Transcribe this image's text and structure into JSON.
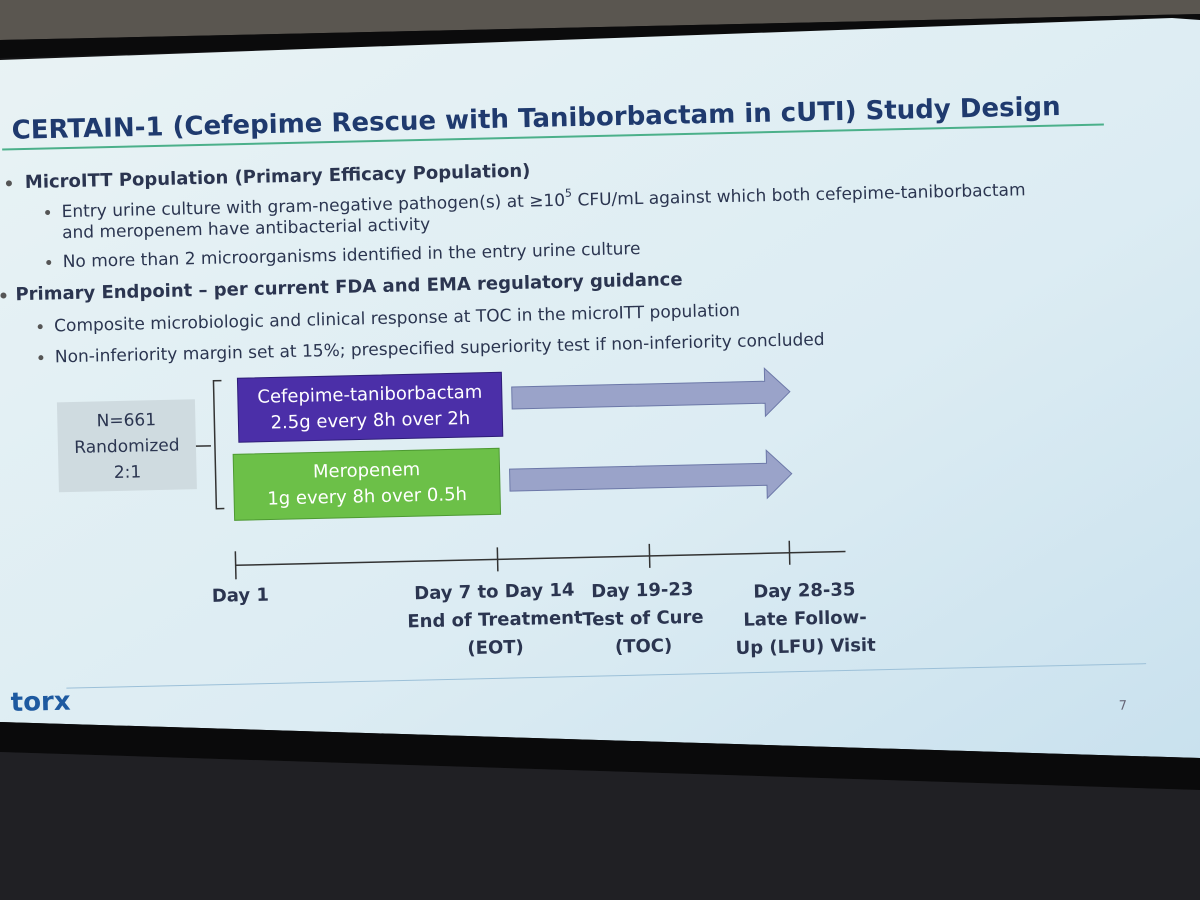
{
  "title": "CERTAIN-1 (Cefepime Rescue with Taniborbactam in cUTI) Study Design",
  "sections": [
    {
      "heading": "MicroITT Population (Primary Efficacy Population)",
      "items": [
        {
          "segments": [
            "Entry urine culture with gram-negative pathogen(s) at ≥10",
            "5",
            " CFU/mL against which both cefepime-taniborbactam"
          ],
          "continuation": "and meropenem have antibacterial activity"
        },
        {
          "text": "No more than 2 microorganisms identified in the entry urine culture"
        }
      ]
    },
    {
      "heading": "Primary Endpoint – per current FDA and EMA regulatory guidance",
      "items": [
        {
          "text": "Composite microbiologic and clinical response at TOC in the microITT population"
        },
        {
          "text": "Non-inferiority margin set at 15%; prespecified superiority test if non-inferiority concluded"
        }
      ]
    }
  ],
  "randomization": [
    "N=661",
    "Randomized",
    "2:1"
  ],
  "arms": [
    {
      "lines": [
        "Cefepime-taniborbactam",
        "2.5g every 8h over 2h"
      ]
    },
    {
      "lines": [
        "Meropenem",
        "1g every 8h over 0.5h"
      ]
    }
  ],
  "timeline": [
    {
      "lines": [
        "Day 1"
      ]
    },
    {
      "lines": [
        "Day 7 to Day 14",
        "End of Treatment",
        "(EOT)"
      ]
    },
    {
      "lines": [
        "Day 19-23",
        "Test of Cure",
        "(TOC)"
      ]
    },
    {
      "lines": [
        "Day 28-35",
        "Late Follow-",
        "Up (LFU) Visit"
      ]
    }
  ],
  "logo": "torx",
  "page_number": "7"
}
